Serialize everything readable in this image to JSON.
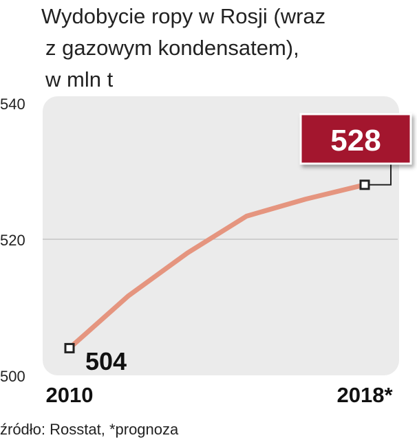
{
  "chart_data": {
    "type": "line",
    "title": [
      "Wydobycie ropy w Rosji (wraz",
      "z  gazowym kondensatem),",
      "w mln t"
    ],
    "categories": [
      "2010",
      null,
      null,
      null,
      null,
      "2018*"
    ],
    "values": [
      504,
      511.7,
      518,
      523.4,
      525.9,
      528
    ],
    "color": "#e5957f",
    "ylim": [
      500,
      540
    ],
    "yticks": [
      500,
      520,
      540
    ],
    "grid": true,
    "source": "źródło: Rosstat, *prognoza"
  }
}
